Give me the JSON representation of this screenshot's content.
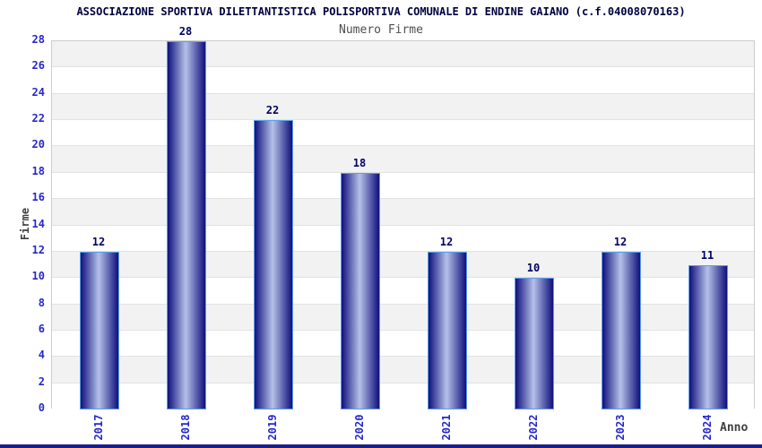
{
  "chart_data": {
    "type": "bar",
    "title": "ASSOCIAZIONE SPORTIVA DILETTANTISTICA POLISPORTIVA COMUNALE DI ENDINE GAIANO (c.f.04008070163)",
    "subtitle": "Numero Firme",
    "categories": [
      "2017",
      "2018",
      "2019",
      "2020",
      "2021",
      "2022",
      "2023",
      "2024"
    ],
    "values": [
      12,
      28,
      22,
      18,
      12,
      10,
      12,
      11
    ],
    "xlabel": "Anno",
    "ylabel": "Firme",
    "ylim": [
      0,
      28
    ],
    "ytick_step": 2,
    "grid": true,
    "legend_position": "none",
    "colors": {
      "title": "#000040",
      "subtitle": "#4e4e4e",
      "band_gray": "#f2f2f2",
      "band_white": "#ffffff",
      "grid_line": "#e2e2e2",
      "plot_border": "#cccccc",
      "bar_dark": "#10107d",
      "bar_highlight": "#b5c1e8",
      "bar_border": "#5b9fe8",
      "value_label": "#000066",
      "tick_label": "#2727cc",
      "axis_label": "#404040",
      "footer_strip": "#1c1c8c",
      "background": "#ffffff"
    }
  }
}
